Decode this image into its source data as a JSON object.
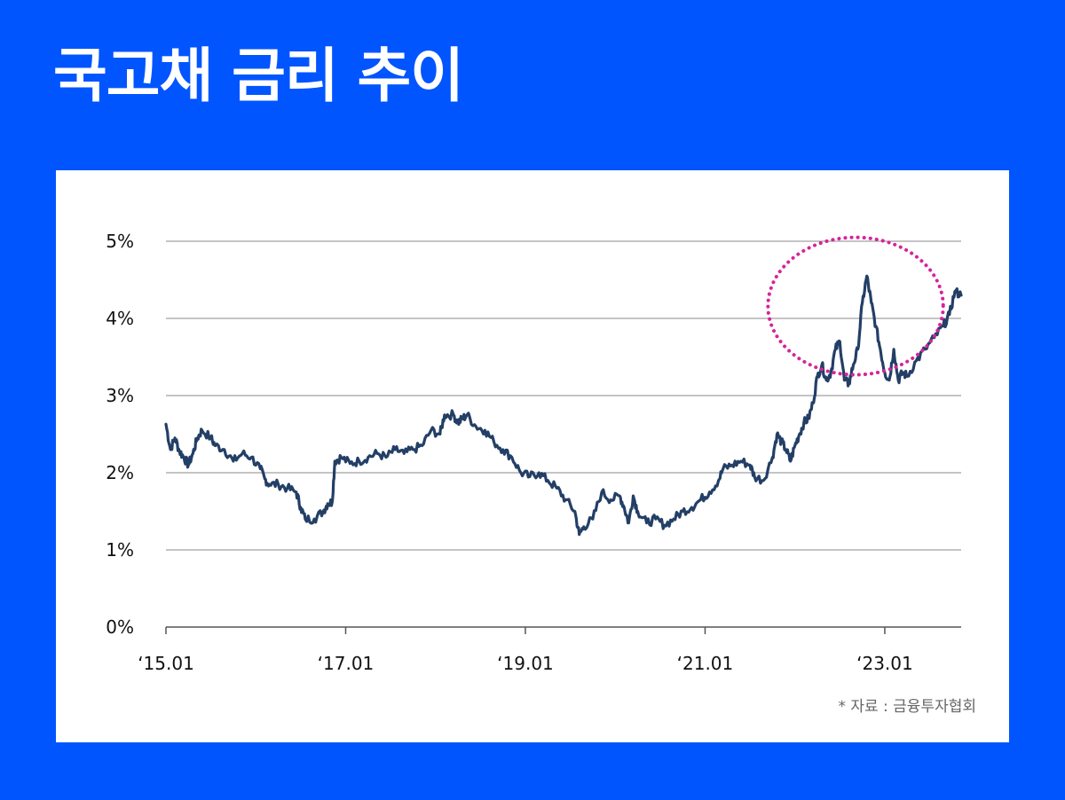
{
  "header": {
    "title": "국고채 금리 추이"
  },
  "source": "* 자료 : 금융투자협회",
  "colors": {
    "background": "#0055ff",
    "card": "#ffffff",
    "line": "#233f66",
    "gridline": "#888888",
    "highlight": "#d6249a"
  },
  "chart_data": {
    "type": "line",
    "title": "",
    "xlabel": "",
    "ylabel": "",
    "y_ticks": [
      "0%",
      "1%",
      "2%",
      "3%",
      "4%",
      "5%"
    ],
    "x_ticks": [
      {
        "label": "‘15.01",
        "x": 2015.0
      },
      {
        "label": "‘17.01",
        "x": 2017.0
      },
      {
        "label": "‘19.01",
        "x": 2019.0
      },
      {
        "label": "‘21.01",
        "x": 2021.0
      },
      {
        "label": "‘23.01",
        "x": 2023.0
      }
    ],
    "xlim": [
      2015.0,
      2023.85
    ],
    "ylim": [
      0,
      5
    ],
    "grid": true,
    "highlight": {
      "shape": "dotted-ellipse",
      "x_range": [
        2021.7,
        2023.65
      ],
      "y_range": [
        3.27,
        5.05
      ]
    },
    "series": [
      {
        "values": [
          [
            2015.0,
            2.63
          ],
          [
            2015.05,
            2.3
          ],
          [
            2015.1,
            2.45
          ],
          [
            2015.15,
            2.28
          ],
          [
            2015.2,
            2.2
          ],
          [
            2015.25,
            2.1
          ],
          [
            2015.3,
            2.25
          ],
          [
            2015.35,
            2.45
          ],
          [
            2015.4,
            2.55
          ],
          [
            2015.5,
            2.45
          ],
          [
            2015.55,
            2.35
          ],
          [
            2015.65,
            2.3
          ],
          [
            2015.75,
            2.15
          ],
          [
            2015.85,
            2.25
          ],
          [
            2015.95,
            2.2
          ],
          [
            2016.05,
            2.05
          ],
          [
            2016.1,
            1.92
          ],
          [
            2016.15,
            1.85
          ],
          [
            2016.25,
            1.85
          ],
          [
            2016.35,
            1.8
          ],
          [
            2016.45,
            1.75
          ],
          [
            2016.5,
            1.55
          ],
          [
            2016.55,
            1.4
          ],
          [
            2016.65,
            1.4
          ],
          [
            2016.75,
            1.5
          ],
          [
            2016.8,
            1.6
          ],
          [
            2016.85,
            1.62
          ],
          [
            2016.88,
            2.15
          ],
          [
            2016.95,
            2.2
          ],
          [
            2017.05,
            2.12
          ],
          [
            2017.15,
            2.15
          ],
          [
            2017.25,
            2.2
          ],
          [
            2017.35,
            2.25
          ],
          [
            2017.45,
            2.2
          ],
          [
            2017.55,
            2.3
          ],
          [
            2017.65,
            2.25
          ],
          [
            2017.75,
            2.3
          ],
          [
            2017.85,
            2.35
          ],
          [
            2017.95,
            2.55
          ],
          [
            2018.05,
            2.5
          ],
          [
            2018.1,
            2.75
          ],
          [
            2018.2,
            2.75
          ],
          [
            2018.25,
            2.65
          ],
          [
            2018.3,
            2.7
          ],
          [
            2018.35,
            2.75
          ],
          [
            2018.45,
            2.6
          ],
          [
            2018.55,
            2.55
          ],
          [
            2018.65,
            2.4
          ],
          [
            2018.75,
            2.3
          ],
          [
            2018.85,
            2.2
          ],
          [
            2018.95,
            2.0
          ],
          [
            2019.05,
            1.95
          ],
          [
            2019.15,
            2.0
          ],
          [
            2019.25,
            1.9
          ],
          [
            2019.35,
            1.8
          ],
          [
            2019.45,
            1.65
          ],
          [
            2019.55,
            1.5
          ],
          [
            2019.6,
            1.2
          ],
          [
            2019.65,
            1.3
          ],
          [
            2019.75,
            1.4
          ],
          [
            2019.85,
            1.75
          ],
          [
            2019.95,
            1.65
          ],
          [
            2020.05,
            1.7
          ],
          [
            2020.1,
            1.55
          ],
          [
            2020.15,
            1.35
          ],
          [
            2020.2,
            1.7
          ],
          [
            2020.25,
            1.5
          ],
          [
            2020.35,
            1.35
          ],
          [
            2020.45,
            1.4
          ],
          [
            2020.55,
            1.32
          ],
          [
            2020.65,
            1.4
          ],
          [
            2020.75,
            1.5
          ],
          [
            2020.85,
            1.55
          ],
          [
            2020.95,
            1.65
          ],
          [
            2021.05,
            1.75
          ],
          [
            2021.15,
            1.9
          ],
          [
            2021.2,
            2.05
          ],
          [
            2021.3,
            2.1
          ],
          [
            2021.4,
            2.15
          ],
          [
            2021.5,
            2.1
          ],
          [
            2021.55,
            1.95
          ],
          [
            2021.65,
            1.9
          ],
          [
            2021.75,
            2.2
          ],
          [
            2021.8,
            2.5
          ],
          [
            2021.85,
            2.4
          ],
          [
            2021.9,
            2.3
          ],
          [
            2021.95,
            2.15
          ],
          [
            2022.0,
            2.35
          ],
          [
            2022.05,
            2.5
          ],
          [
            2022.1,
            2.65
          ],
          [
            2022.15,
            2.7
          ],
          [
            2022.2,
            2.9
          ],
          [
            2022.25,
            3.25
          ],
          [
            2022.3,
            3.4
          ],
          [
            2022.35,
            3.2
          ],
          [
            2022.4,
            3.3
          ],
          [
            2022.45,
            3.6
          ],
          [
            2022.5,
            3.7
          ],
          [
            2022.55,
            3.2
          ],
          [
            2022.6,
            3.15
          ],
          [
            2022.65,
            3.4
          ],
          [
            2022.7,
            3.6
          ],
          [
            2022.75,
            4.2
          ],
          [
            2022.8,
            4.55
          ],
          [
            2022.85,
            4.2
          ],
          [
            2022.9,
            3.9
          ],
          [
            2022.95,
            3.6
          ],
          [
            2023.0,
            3.3
          ],
          [
            2023.05,
            3.2
          ],
          [
            2023.1,
            3.6
          ],
          [
            2023.15,
            3.2
          ],
          [
            2023.2,
            3.3
          ],
          [
            2023.25,
            3.25
          ],
          [
            2023.35,
            3.45
          ],
          [
            2023.45,
            3.6
          ],
          [
            2023.55,
            3.75
          ],
          [
            2023.65,
            3.9
          ],
          [
            2023.72,
            4.05
          ],
          [
            2023.78,
            4.35
          ],
          [
            2023.85,
            4.3
          ]
        ]
      }
    ]
  }
}
